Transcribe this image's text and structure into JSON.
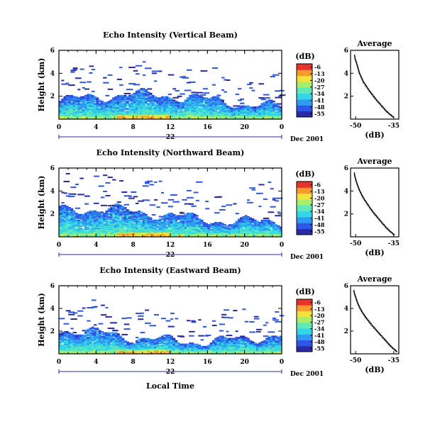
{
  "colorbar": {
    "unit": "(dB)",
    "ticks": [
      -6,
      -13,
      -20,
      -27,
      -34,
      -41,
      -48,
      -55
    ],
    "colors": [
      "#2a2aa6",
      "#2f56e8",
      "#2f9bf0",
      "#33d6e6",
      "#5fe8b8",
      "#a6ef6c",
      "#f2e23c",
      "#f79a2c",
      "#e8332a"
    ]
  },
  "date_label": "Dec 2001",
  "day_label": "22",
  "x_axis_label": "Local Time",
  "average_title": "Average",
  "average_xlabel": "(dB)",
  "chart_data": [
    {
      "type": "heatmap",
      "title": "Echo Intensity (Vertical Beam)",
      "ylabel": "Height (km)",
      "x_ticks": [
        "0",
        "4",
        "8",
        "12",
        "16",
        "20",
        "0"
      ],
      "y_ticks": [
        "6",
        "4",
        "2"
      ],
      "xlim": [
        0,
        24
      ],
      "ylim": [
        0,
        6
      ],
      "inset": {
        "type": "line",
        "title": "Average",
        "xlabel": "(dB)",
        "x_ticks": [
          "-50",
          "-35"
        ],
        "y_ticks": [
          "6",
          "4",
          "2"
        ],
        "xlim": [
          -52,
          -33
        ],
        "ylim": [
          0,
          6
        ],
        "x": [
          -50.5,
          -50.2,
          -49.6,
          -49.1,
          -48.6,
          -47.8,
          -47.0,
          -45.8,
          -44.6,
          -43.2,
          -41.8,
          -40.2,
          -38.6,
          -37.2,
          -36.0,
          -35.2
        ],
        "y": [
          5.6,
          5.2,
          4.8,
          4.4,
          4.0,
          3.6,
          3.2,
          2.8,
          2.4,
          2.0,
          1.6,
          1.2,
          0.8,
          0.5,
          0.3,
          0.15
        ]
      }
    },
    {
      "type": "heatmap",
      "title": "Echo Intensity (Northward Beam)",
      "ylabel": "Height (km)",
      "x_ticks": [
        "0",
        "4",
        "8",
        "12",
        "16",
        "20",
        "0"
      ],
      "y_ticks": [
        "6",
        "4",
        "2"
      ],
      "xlim": [
        0,
        24
      ],
      "ylim": [
        0,
        6
      ],
      "inset": {
        "type": "line",
        "title": "Average",
        "xlabel": "(dB)",
        "x_ticks": [
          "-50",
          "-35"
        ],
        "y_ticks": [
          "6",
          "4",
          "2"
        ],
        "xlim": [
          -52,
          -33
        ],
        "ylim": [
          0,
          6
        ],
        "x": [
          -50.6,
          -50.3,
          -49.8,
          -49.2,
          -48.5,
          -47.6,
          -46.6,
          -45.4,
          -44.2,
          -42.8,
          -41.3,
          -39.8,
          -38.2,
          -36.8,
          -35.6,
          -34.8
        ],
        "y": [
          5.6,
          5.2,
          4.8,
          4.4,
          4.0,
          3.6,
          3.2,
          2.8,
          2.4,
          2.0,
          1.6,
          1.2,
          0.8,
          0.5,
          0.3,
          0.15
        ]
      }
    },
    {
      "type": "heatmap",
      "title": "Echo Intensity (Eastward Beam)",
      "ylabel": "Height (km)",
      "x_ticks": [
        "0",
        "4",
        "8",
        "12",
        "16",
        "20",
        "0"
      ],
      "y_ticks": [
        "6",
        "4",
        "2"
      ],
      "xlim": [
        0,
        24
      ],
      "ylim": [
        0,
        6
      ],
      "inset": {
        "type": "line",
        "title": "Average",
        "xlabel": "(dB)",
        "x_ticks": [
          "-50",
          "-35"
        ],
        "y_ticks": [
          "6",
          "4",
          "2"
        ],
        "xlim": [
          -52,
          -33
        ],
        "ylim": [
          0,
          6
        ],
        "x": [
          -50.8,
          -50.4,
          -49.8,
          -49.2,
          -48.4,
          -47.4,
          -46.2,
          -44.8,
          -43.4,
          -41.8,
          -40.2,
          -38.6,
          -37.0,
          -35.6,
          -34.4,
          -33.8
        ],
        "y": [
          5.6,
          5.2,
          4.8,
          4.4,
          4.0,
          3.6,
          3.2,
          2.8,
          2.4,
          2.0,
          1.6,
          1.2,
          0.8,
          0.5,
          0.3,
          0.15
        ]
      }
    }
  ]
}
